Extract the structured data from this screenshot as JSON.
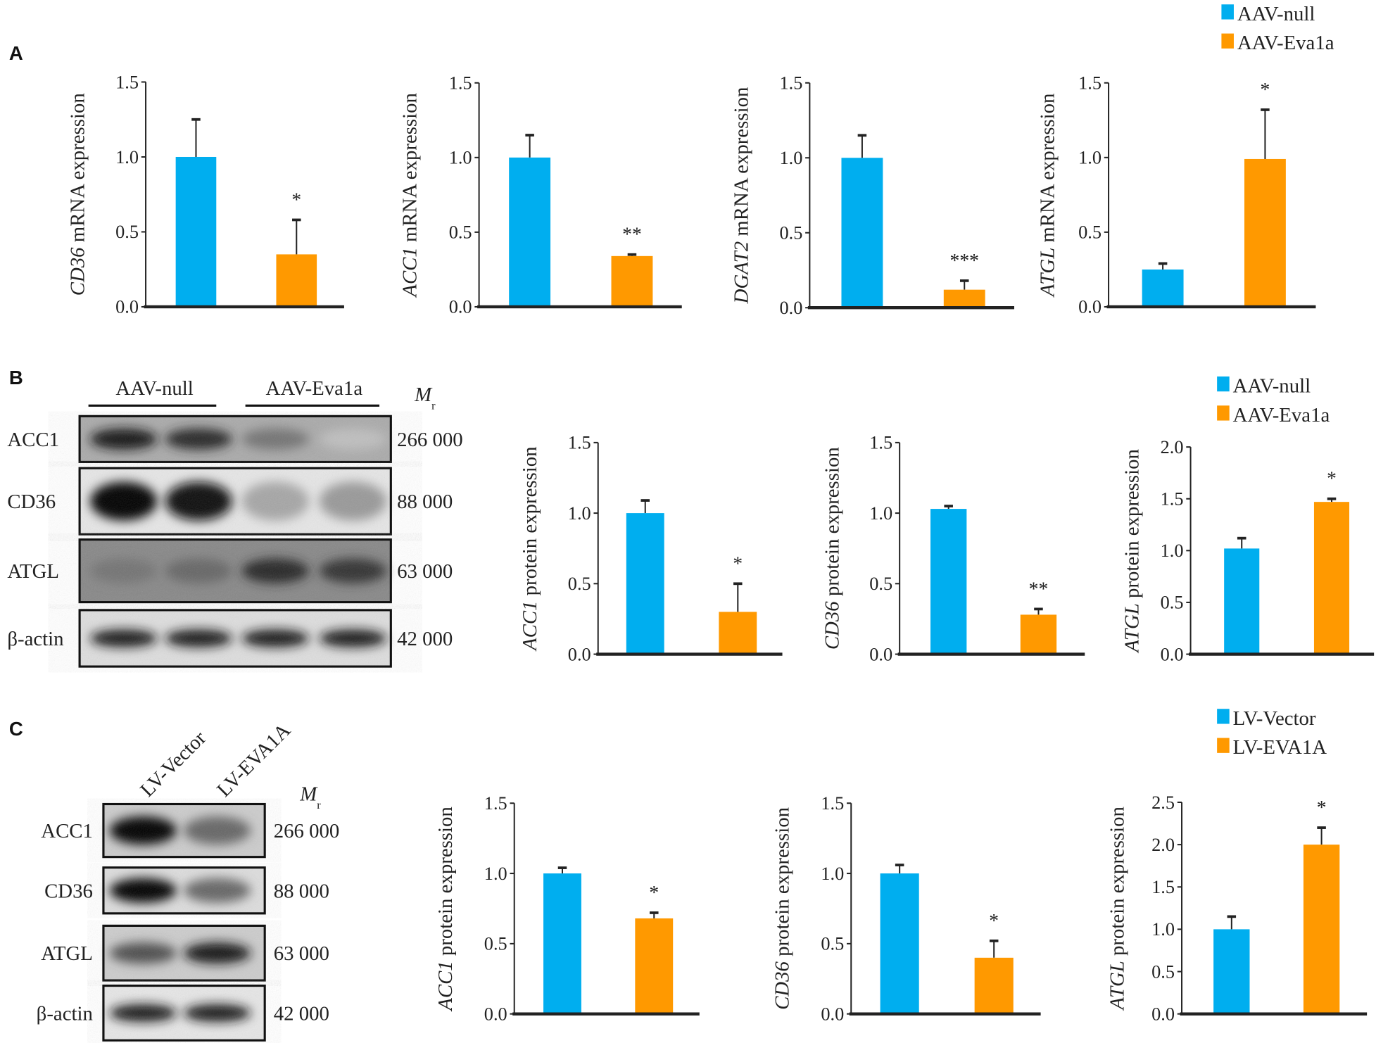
{
  "panels": {
    "A": {
      "letter": "A"
    },
    "B": {
      "letter": "B",
      "blot": {
        "groups": [
          "AAV-null",
          "AAV-Eva1a"
        ],
        "mr_label": "M",
        "mr_sub": "r",
        "rows": [
          {
            "protein": "ACC1",
            "mr": "266 000"
          },
          {
            "protein": "CD36",
            "mr": "88 000"
          },
          {
            "protein": "ATGL",
            "mr": "63 000"
          },
          {
            "protein": "β-actin",
            "mr": "42 000"
          }
        ]
      }
    },
    "C": {
      "letter": "C",
      "blot": {
        "lanes": [
          "LV-Vector",
          "LV-EVA1A"
        ],
        "mr_label": "M",
        "mr_sub": "r",
        "rows": [
          {
            "protein": "ACC1",
            "mr": "266 000"
          },
          {
            "protein": "CD36",
            "mr": "88 000"
          },
          {
            "protein": "ATGL",
            "mr": "63 000"
          },
          {
            "protein": "β-actin",
            "mr": "42 000"
          }
        ]
      }
    }
  },
  "legends": {
    "A": [
      {
        "label": "AAV-null",
        "color": "#00AEEF"
      },
      {
        "label": "AAV-Eva1a",
        "color": "#FF9900"
      }
    ],
    "B": [
      {
        "label": "AAV-null",
        "color": "#00AEEF"
      },
      {
        "label": "AAV-Eva1a",
        "color": "#FF9900"
      }
    ],
    "C": [
      {
        "label": "LV-Vector",
        "color": "#00AEEF"
      },
      {
        "label": "LV-EVA1A",
        "color": "#FF9900"
      }
    ]
  },
  "chart_data": [
    {
      "panel": "A",
      "type": "bar",
      "ylabel_gene": "CD36",
      "ylabel_rest": " mRNA expression",
      "ylim": [
        0,
        1.5
      ],
      "ticks": [
        "0.0",
        "0.5",
        "1.0",
        "1.5"
      ],
      "series": [
        {
          "name": "AAV-null",
          "value": 1.0,
          "error_top": 1.25
        },
        {
          "name": "AAV-Eva1a",
          "value": 0.35,
          "error_top": 0.58,
          "significance": "*"
        }
      ]
    },
    {
      "panel": "A",
      "type": "bar",
      "ylabel_gene": "ACC1",
      "ylabel_rest": " mRNA expression",
      "ylim": [
        0,
        1.5
      ],
      "ticks": [
        "0.0",
        "0.5",
        "1.0",
        "1.5"
      ],
      "series": [
        {
          "name": "AAV-null",
          "value": 1.0,
          "error_top": 1.15
        },
        {
          "name": "AAV-Eva1a",
          "value": 0.34,
          "error_top": 0.35,
          "significance": "**"
        }
      ]
    },
    {
      "panel": "A",
      "type": "bar",
      "ylabel_gene": "DGAT2",
      "ylabel_rest": " mRNA expression",
      "ylim": [
        0,
        1.5
      ],
      "ticks": [
        "0.0",
        "0.5",
        "1.0",
        "1.5"
      ],
      "series": [
        {
          "name": "AAV-null",
          "value": 1.0,
          "error_top": 1.15
        },
        {
          "name": "AAV-Eva1a",
          "value": 0.12,
          "error_top": 0.18,
          "significance": "***"
        }
      ]
    },
    {
      "panel": "A",
      "type": "bar",
      "ylabel_gene": "ATGL",
      "ylabel_rest": " mRNA expression",
      "ylim": [
        0,
        1.5
      ],
      "ticks": [
        "0.0",
        "0.5",
        "1.0",
        "1.5"
      ],
      "series": [
        {
          "name": "AAV-null",
          "value": 0.25,
          "error_top": 0.29
        },
        {
          "name": "AAV-Eva1a",
          "value": 0.99,
          "error_top": 1.32,
          "significance": "*"
        }
      ]
    },
    {
      "panel": "B",
      "type": "bar",
      "ylabel_gene": "ACC1",
      "ylabel_rest": " protein expression",
      "ylim": [
        0,
        1.5
      ],
      "ticks": [
        "0.0",
        "0.5",
        "1.0",
        "1.5"
      ],
      "series": [
        {
          "name": "AAV-null",
          "value": 1.0,
          "error_top": 1.09
        },
        {
          "name": "AAV-Eva1a",
          "value": 0.3,
          "error_top": 0.5,
          "significance": "*"
        }
      ]
    },
    {
      "panel": "B",
      "type": "bar",
      "ylabel_gene": "CD36",
      "ylabel_rest": " protein expression",
      "ylim": [
        0,
        1.5
      ],
      "ticks": [
        "0.0",
        "0.5",
        "1.0",
        "1.5"
      ],
      "series": [
        {
          "name": "AAV-null",
          "value": 1.03,
          "error_top": 1.05
        },
        {
          "name": "AAV-Eva1a",
          "value": 0.28,
          "error_top": 0.32,
          "significance": "**"
        }
      ]
    },
    {
      "panel": "B",
      "type": "bar",
      "ylabel_gene": "ATGL",
      "ylabel_rest": " protein expression",
      "ylim": [
        0,
        2.0
      ],
      "ticks": [
        "0.0",
        "0.5",
        "1.0",
        "1.5",
        "2.0"
      ],
      "series": [
        {
          "name": "AAV-null",
          "value": 1.02,
          "error_top": 1.12
        },
        {
          "name": "AAV-Eva1a",
          "value": 1.47,
          "error_top": 1.5,
          "significance": "*"
        }
      ]
    },
    {
      "panel": "C",
      "type": "bar",
      "ylabel_gene": "ACC1",
      "ylabel_rest": " protein expression",
      "ylim": [
        0,
        1.5
      ],
      "ticks": [
        "0.0",
        "0.5",
        "1.0",
        "1.5"
      ],
      "series": [
        {
          "name": "LV-Vector",
          "value": 1.0,
          "error_top": 1.04
        },
        {
          "name": "LV-EVA1A",
          "value": 0.68,
          "error_top": 0.72,
          "significance": "*"
        }
      ]
    },
    {
      "panel": "C",
      "type": "bar",
      "ylabel_gene": "CD36",
      "ylabel_rest": " protein expression",
      "ylim": [
        0,
        1.5
      ],
      "ticks": [
        "0.0",
        "0.5",
        "1.0",
        "1.5"
      ],
      "series": [
        {
          "name": "LV-Vector",
          "value": 1.0,
          "error_top": 1.06
        },
        {
          "name": "LV-EVA1A",
          "value": 0.4,
          "error_top": 0.52,
          "significance": "*"
        }
      ]
    },
    {
      "panel": "C",
      "type": "bar",
      "ylabel_gene": "ATGL",
      "ylabel_rest": " protein expression",
      "ylim": [
        0,
        2.5
      ],
      "ticks": [
        "0.0",
        "0.5",
        "1.0",
        "1.5",
        "2.0",
        "2.5"
      ],
      "series": [
        {
          "name": "LV-Vector",
          "value": 1.0,
          "error_top": 1.15
        },
        {
          "name": "LV-EVA1A",
          "value": 2.0,
          "error_top": 2.2,
          "significance": "*"
        }
      ]
    }
  ]
}
